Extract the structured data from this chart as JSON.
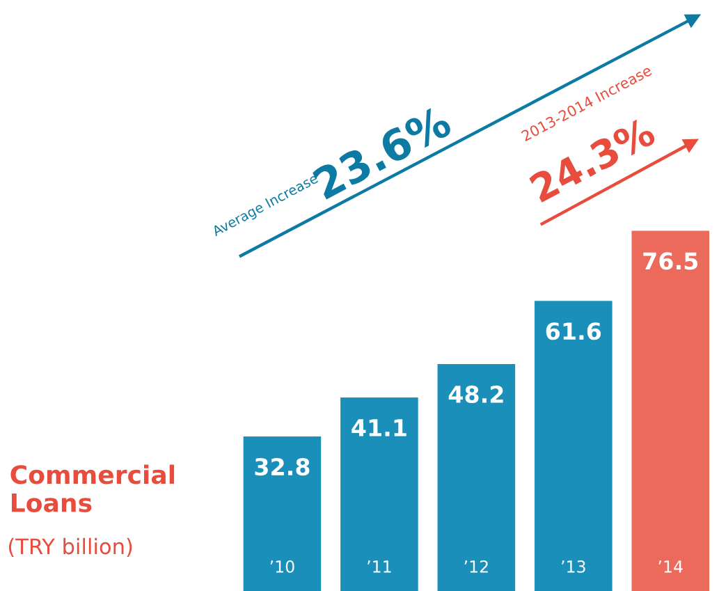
{
  "chart_data": {
    "type": "bar",
    "title": "Commercial Loans",
    "subtitle": "(TRY billion)",
    "categories": [
      "’10",
      "’11",
      "’12",
      "’13",
      "’14"
    ],
    "values": [
      32.8,
      41.1,
      48.2,
      61.6,
      76.5
    ],
    "colors": [
      "#1a8fba",
      "#1a8fba",
      "#1a8fba",
      "#1a8fba",
      "#ec6a5c"
    ],
    "data_labels": true,
    "annotations": [
      "Average Increase",
      "23.6%",
      "2013-2014 Increase",
      "24.3%"
    ]
  }
}
